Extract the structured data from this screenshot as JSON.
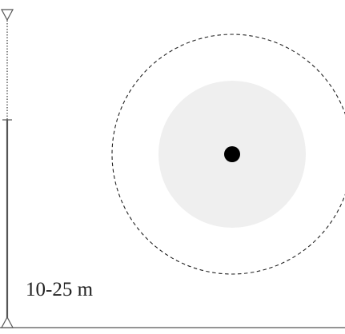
{
  "diagram": {
    "range_label": "10-25 m",
    "colors": {
      "stroke": "#555555",
      "inner_zone": "#efefef",
      "center_point": "#000000",
      "label": "#222222"
    }
  }
}
